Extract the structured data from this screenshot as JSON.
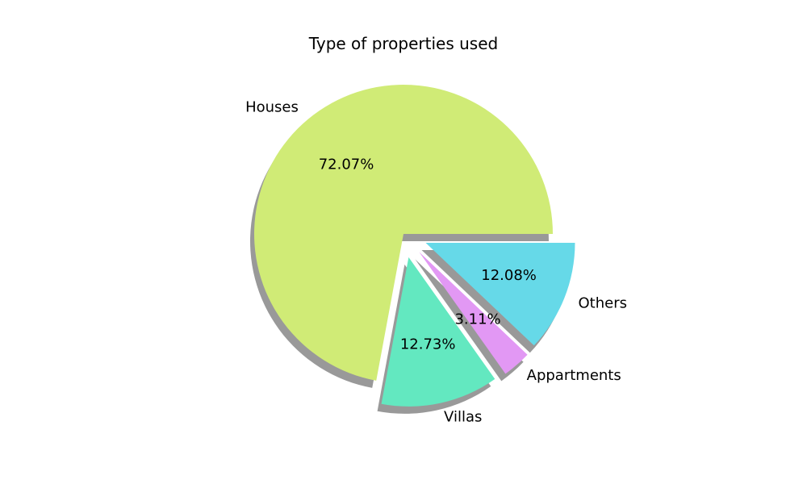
{
  "chart_data": {
    "type": "pie",
    "title": "Type of properties used",
    "slices": [
      {
        "label": "Houses",
        "value": 72.07,
        "pct_label": "72.07%",
        "color": "#d0eb76",
        "exploded": false
      },
      {
        "label": "Villas",
        "value": 12.73,
        "pct_label": "12.73%",
        "color": "#63e8c0",
        "exploded": true
      },
      {
        "label": "Appartments",
        "value": 3.11,
        "pct_label": "3.11%",
        "color": "#e298f4",
        "exploded": true
      },
      {
        "label": "Others",
        "value": 12.08,
        "pct_label": "12.08%",
        "color": "#66d9e8",
        "exploded": true
      }
    ],
    "shadow": true,
    "start_angle_deg": 0,
    "direction": "counterclockwise"
  }
}
